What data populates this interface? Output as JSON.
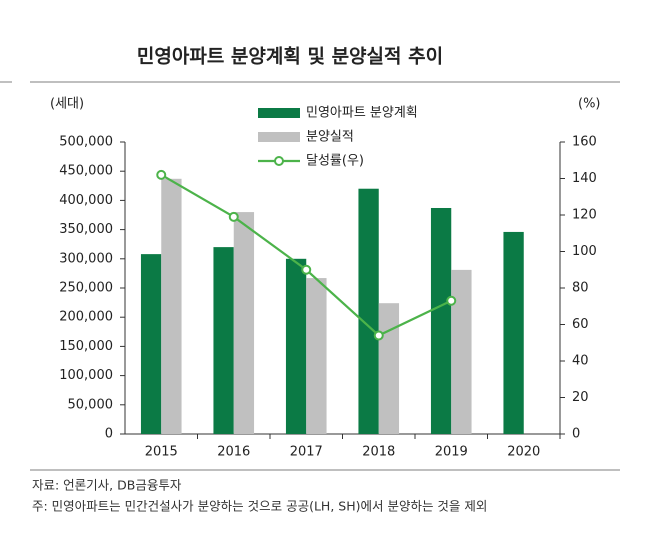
{
  "chart_data": {
    "type": "bar-line",
    "title": "민영아파트 분양계획 및 분양실적 추이",
    "y_label": "(세대)",
    "y2_label": "(%)",
    "categories": [
      "2015",
      "2016",
      "2017",
      "2018",
      "2019",
      "2020"
    ],
    "series": [
      {
        "name": "민영아파트 분양계획",
        "color": "#0b7a45",
        "type": "bar",
        "values": [
          308000,
          320000,
          300000,
          420000,
          387000,
          346000
        ]
      },
      {
        "name": "분양실적",
        "color": "#c0c0c0",
        "type": "bar",
        "values": [
          437000,
          380000,
          267000,
          224000,
          281000,
          null
        ]
      },
      {
        "name": "달성률(우)",
        "color": "#4cb34a",
        "type": "line",
        "axis": "y2",
        "values": [
          142,
          119,
          90,
          54,
          73,
          null
        ]
      }
    ],
    "ylim": [
      0,
      500000
    ],
    "yticks": [
      0,
      {
        "value": 50000,
        "label": "50,000"
      },
      {
        "value": 100000,
        "label": "100,000"
      },
      {
        "value": 150000,
        "label": "150,000"
      },
      {
        "value": 200000,
        "label": "200,000"
      },
      {
        "value": 250000,
        "label": "250,000"
      },
      {
        "value": 300000,
        "label": "300,000"
      },
      {
        "value": 350000,
        "label": "350,000"
      },
      {
        "value": 400000,
        "label": "400,000"
      },
      {
        "value": 450000,
        "label": "450,000"
      },
      {
        "value": 500000,
        "label": "500,000"
      }
    ],
    "y2lim": [
      0,
      160
    ],
    "y2ticks": [
      0,
      20,
      40,
      60,
      80,
      100,
      120,
      140,
      160
    ],
    "source": "자료: 언론기사, DB금융투자",
    "note": "주: 민영아파트는 민간건설사가 분양하는 것으로 공공(LH, SH)에서 분양하는 것을 제외"
  }
}
